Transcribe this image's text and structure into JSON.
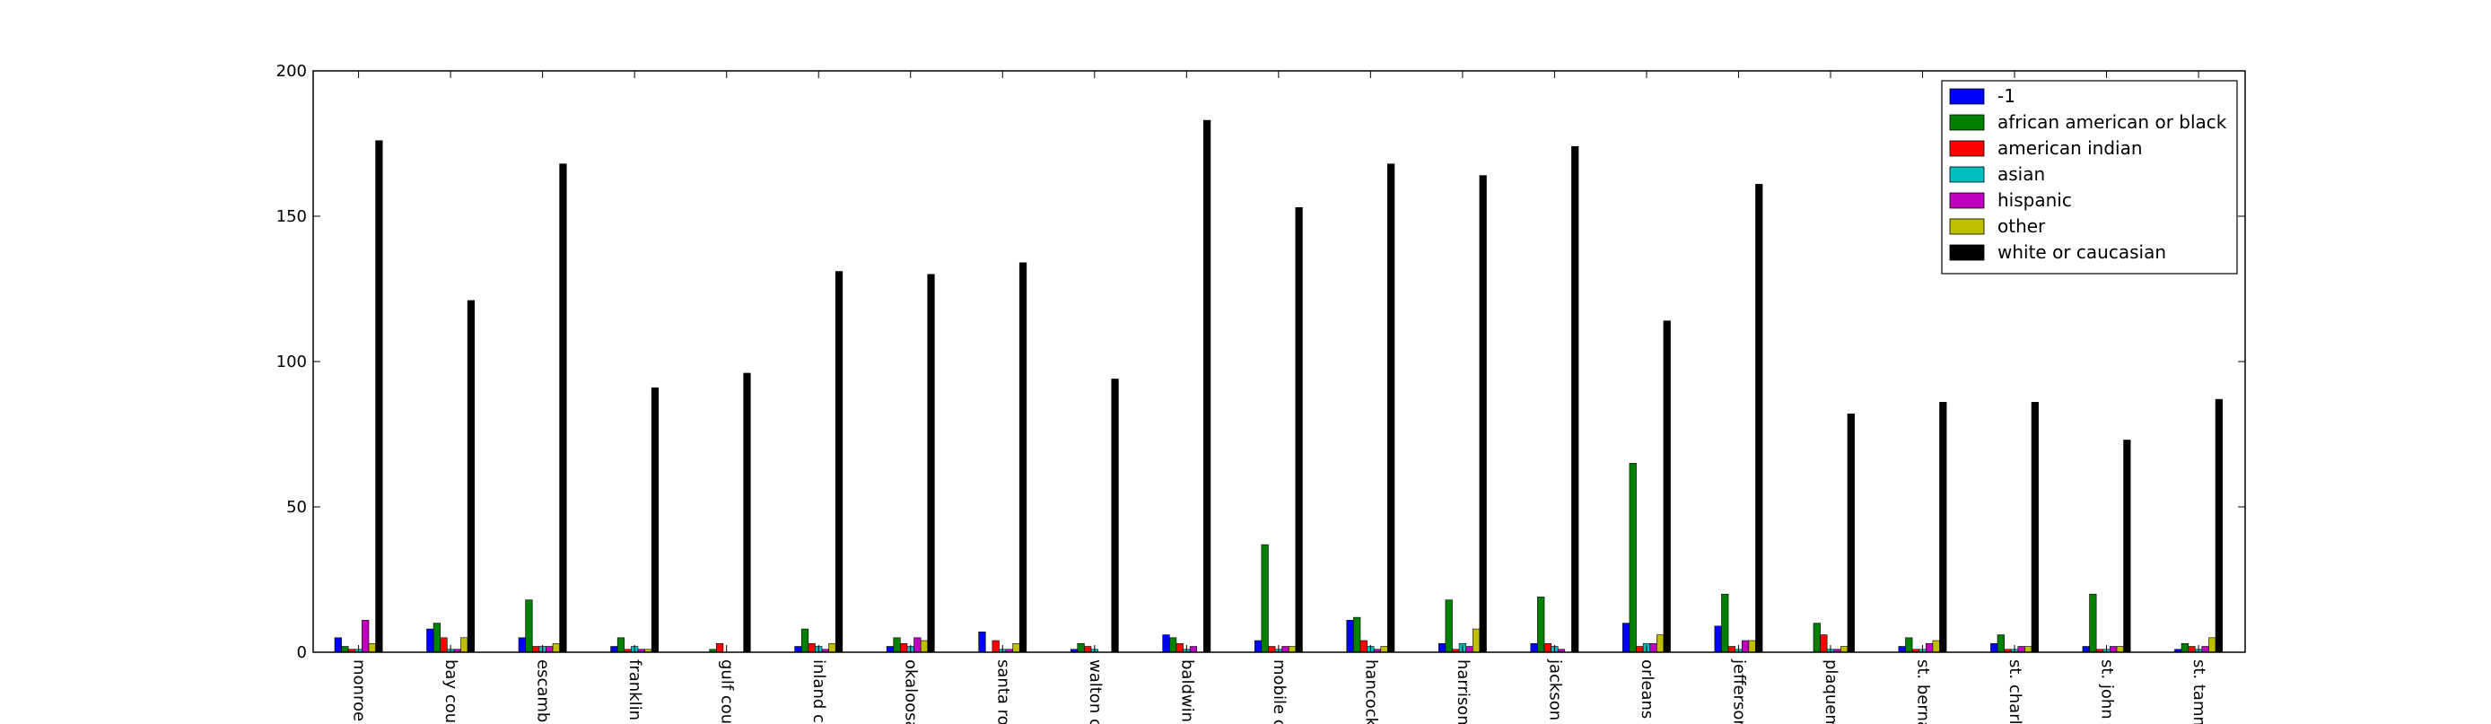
{
  "chart_data": {
    "type": "bar",
    "title": "",
    "xlabel": "",
    "ylabel": "",
    "ylim": [
      0,
      200
    ],
    "yticks": [
      0,
      50,
      100,
      150,
      200
    ],
    "legend_position": "top-right",
    "grid": false,
    "categories": [
      "monroe c",
      "bay coun",
      "escambia",
      "franklin c",
      "gulf coun",
      "inland co",
      "okaloosa",
      "santa ros",
      "walton co",
      "baldwin c",
      "mobile co",
      "hancock",
      "harrison",
      "jackson c",
      "orleans p",
      "jefferson",
      "plaquem",
      "st. berna",
      "st. charle",
      "st. john t",
      "st. tamm"
    ],
    "series": [
      {
        "name": "-1",
        "color": "#0000ff",
        "values": [
          5,
          8,
          5,
          2,
          0,
          2,
          2,
          7,
          1,
          6,
          4,
          11,
          3,
          3,
          10,
          9,
          0,
          2,
          3,
          2,
          1
        ]
      },
      {
        "name": "african american or black",
        "color": "#008000",
        "values": [
          2,
          10,
          18,
          5,
          1,
          8,
          5,
          0,
          3,
          5,
          37,
          12,
          18,
          19,
          65,
          20,
          10,
          5,
          6,
          20,
          3
        ]
      },
      {
        "name": "american indian",
        "color": "#ff0000",
        "values": [
          1,
          5,
          2,
          1,
          3,
          3,
          3,
          4,
          2,
          3,
          2,
          4,
          1,
          3,
          2,
          2,
          6,
          1,
          1,
          1,
          2
        ]
      },
      {
        "name": "asian",
        "color": "#00bfbf",
        "values": [
          1,
          1,
          2,
          2,
          0,
          2,
          2,
          1,
          1,
          1,
          1,
          2,
          3,
          2,
          3,
          1,
          1,
          1,
          1,
          1,
          1
        ]
      },
      {
        "name": "hispanic",
        "color": "#bf00bf",
        "values": [
          11,
          1,
          2,
          1,
          0,
          1,
          5,
          1,
          0,
          2,
          2,
          1,
          2,
          1,
          3,
          4,
          1,
          3,
          2,
          2,
          2
        ]
      },
      {
        "name": "other",
        "color": "#bfbf00",
        "values": [
          3,
          5,
          3,
          1,
          0,
          3,
          4,
          3,
          0,
          0,
          2,
          2,
          8,
          0,
          6,
          4,
          2,
          4,
          2,
          2,
          5
        ]
      },
      {
        "name": "white or caucasian",
        "color": "#000000",
        "values": [
          176,
          121,
          168,
          91,
          96,
          131,
          130,
          134,
          94,
          183,
          153,
          168,
          164,
          174,
          114,
          161,
          82,
          86,
          86,
          73,
          87
        ]
      }
    ]
  }
}
